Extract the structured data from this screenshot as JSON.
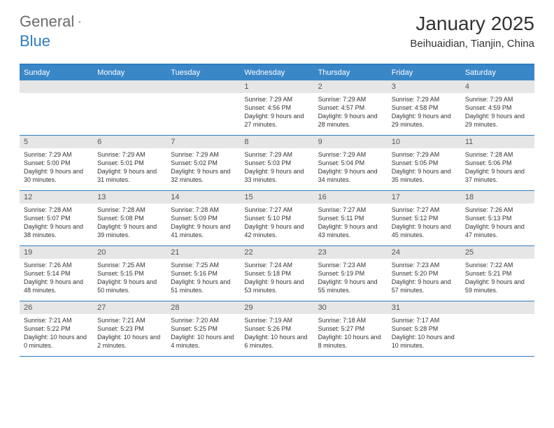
{
  "logo": {
    "gray": "General",
    "blue": "Blue"
  },
  "title": "January 2025",
  "location": "Beihuaidian, Tianjin, China",
  "colors": {
    "header_bg": "#3a87c8",
    "border": "#2f7cc0",
    "daynum_bg": "#e6e6e6",
    "text": "#333333"
  },
  "weekdays": [
    "Sunday",
    "Monday",
    "Tuesday",
    "Wednesday",
    "Thursday",
    "Friday",
    "Saturday"
  ],
  "weeks": [
    [
      null,
      null,
      null,
      {
        "n": "1",
        "sunrise": "7:29 AM",
        "sunset": "4:56 PM",
        "day_h": "9",
        "day_m": "27"
      },
      {
        "n": "2",
        "sunrise": "7:29 AM",
        "sunset": "4:57 PM",
        "day_h": "9",
        "day_m": "28"
      },
      {
        "n": "3",
        "sunrise": "7:29 AM",
        "sunset": "4:58 PM",
        "day_h": "9",
        "day_m": "29"
      },
      {
        "n": "4",
        "sunrise": "7:29 AM",
        "sunset": "4:59 PM",
        "day_h": "9",
        "day_m": "29"
      }
    ],
    [
      {
        "n": "5",
        "sunrise": "7:29 AM",
        "sunset": "5:00 PM",
        "day_h": "9",
        "day_m": "30"
      },
      {
        "n": "6",
        "sunrise": "7:29 AM",
        "sunset": "5:01 PM",
        "day_h": "9",
        "day_m": "31"
      },
      {
        "n": "7",
        "sunrise": "7:29 AM",
        "sunset": "5:02 PM",
        "day_h": "9",
        "day_m": "32"
      },
      {
        "n": "8",
        "sunrise": "7:29 AM",
        "sunset": "5:03 PM",
        "day_h": "9",
        "day_m": "33"
      },
      {
        "n": "9",
        "sunrise": "7:29 AM",
        "sunset": "5:04 PM",
        "day_h": "9",
        "day_m": "34"
      },
      {
        "n": "10",
        "sunrise": "7:29 AM",
        "sunset": "5:05 PM",
        "day_h": "9",
        "day_m": "35"
      },
      {
        "n": "11",
        "sunrise": "7:28 AM",
        "sunset": "5:06 PM",
        "day_h": "9",
        "day_m": "37"
      }
    ],
    [
      {
        "n": "12",
        "sunrise": "7:28 AM",
        "sunset": "5:07 PM",
        "day_h": "9",
        "day_m": "38"
      },
      {
        "n": "13",
        "sunrise": "7:28 AM",
        "sunset": "5:08 PM",
        "day_h": "9",
        "day_m": "39"
      },
      {
        "n": "14",
        "sunrise": "7:28 AM",
        "sunset": "5:09 PM",
        "day_h": "9",
        "day_m": "41"
      },
      {
        "n": "15",
        "sunrise": "7:27 AM",
        "sunset": "5:10 PM",
        "day_h": "9",
        "day_m": "42"
      },
      {
        "n": "16",
        "sunrise": "7:27 AM",
        "sunset": "5:11 PM",
        "day_h": "9",
        "day_m": "43"
      },
      {
        "n": "17",
        "sunrise": "7:27 AM",
        "sunset": "5:12 PM",
        "day_h": "9",
        "day_m": "45"
      },
      {
        "n": "18",
        "sunrise": "7:26 AM",
        "sunset": "5:13 PM",
        "day_h": "9",
        "day_m": "47"
      }
    ],
    [
      {
        "n": "19",
        "sunrise": "7:26 AM",
        "sunset": "5:14 PM",
        "day_h": "9",
        "day_m": "48"
      },
      {
        "n": "20",
        "sunrise": "7:25 AM",
        "sunset": "5:15 PM",
        "day_h": "9",
        "day_m": "50"
      },
      {
        "n": "21",
        "sunrise": "7:25 AM",
        "sunset": "5:16 PM",
        "day_h": "9",
        "day_m": "51"
      },
      {
        "n": "22",
        "sunrise": "7:24 AM",
        "sunset": "5:18 PM",
        "day_h": "9",
        "day_m": "53"
      },
      {
        "n": "23",
        "sunrise": "7:23 AM",
        "sunset": "5:19 PM",
        "day_h": "9",
        "day_m": "55"
      },
      {
        "n": "24",
        "sunrise": "7:23 AM",
        "sunset": "5:20 PM",
        "day_h": "9",
        "day_m": "57"
      },
      {
        "n": "25",
        "sunrise": "7:22 AM",
        "sunset": "5:21 PM",
        "day_h": "9",
        "day_m": "59"
      }
    ],
    [
      {
        "n": "26",
        "sunrise": "7:21 AM",
        "sunset": "5:22 PM",
        "day_h": "10",
        "day_m": "0"
      },
      {
        "n": "27",
        "sunrise": "7:21 AM",
        "sunset": "5:23 PM",
        "day_h": "10",
        "day_m": "2"
      },
      {
        "n": "28",
        "sunrise": "7:20 AM",
        "sunset": "5:25 PM",
        "day_h": "10",
        "day_m": "4"
      },
      {
        "n": "29",
        "sunrise": "7:19 AM",
        "sunset": "5:26 PM",
        "day_h": "10",
        "day_m": "6"
      },
      {
        "n": "30",
        "sunrise": "7:18 AM",
        "sunset": "5:27 PM",
        "day_h": "10",
        "day_m": "8"
      },
      {
        "n": "31",
        "sunrise": "7:17 AM",
        "sunset": "5:28 PM",
        "day_h": "10",
        "day_m": "10"
      },
      null
    ]
  ],
  "labels": {
    "sunrise": "Sunrise:",
    "sunset": "Sunset:",
    "daylight": "Daylight:",
    "hours": "hours",
    "and": "and",
    "minutes": "minutes."
  }
}
